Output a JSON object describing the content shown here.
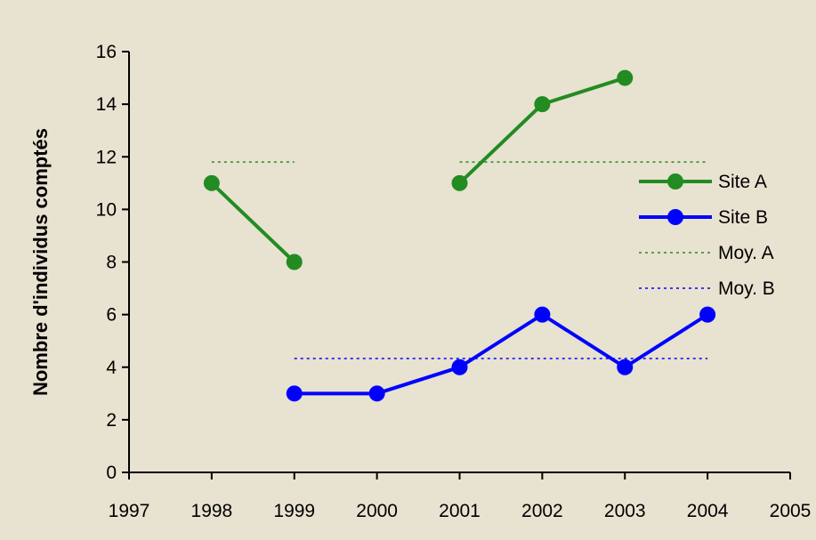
{
  "chart_data": {
    "type": "line",
    "title": "",
    "xlabel": "",
    "ylabel": "Nombre d'individus comptés",
    "xlim": [
      1997,
      2005
    ],
    "ylim": [
      0,
      16
    ],
    "x_ticks": [
      "1997",
      "1998",
      "1999",
      "2000",
      "2001",
      "2002",
      "2003",
      "2004",
      "2005"
    ],
    "y_ticks": [
      "0",
      "2",
      "4",
      "6",
      "8",
      "10",
      "12",
      "14",
      "16"
    ],
    "grid": false,
    "legend_position": "right",
    "series": [
      {
        "name": "Site A",
        "color": "#228b22",
        "style": "solid-marker",
        "segments": [
          [
            [
              1998,
              11
            ],
            [
              1999,
              8
            ]
          ],
          [
            [
              2001,
              11
            ],
            [
              2002,
              14
            ],
            [
              2003,
              15
            ]
          ]
        ]
      },
      {
        "name": "Site B",
        "color": "#0000ff",
        "style": "solid-marker",
        "segments": [
          [
            [
              1999,
              3
            ],
            [
              2000,
              3
            ],
            [
              2001,
              4
            ],
            [
              2002,
              6
            ],
            [
              2003,
              4
            ],
            [
              2004,
              6
            ]
          ]
        ]
      },
      {
        "name": "Moy. A",
        "color": "#228b22",
        "style": "dotted",
        "segments": [
          [
            [
              1998,
              11.8
            ],
            [
              1999,
              11.8
            ]
          ],
          [
            [
              2001,
              11.8
            ],
            [
              2004,
              11.8
            ]
          ]
        ]
      },
      {
        "name": "Moy. B",
        "color": "#0000ff",
        "style": "dotted",
        "segments": [
          [
            [
              1999,
              4.33
            ],
            [
              2004,
              4.33
            ]
          ]
        ]
      }
    ]
  }
}
